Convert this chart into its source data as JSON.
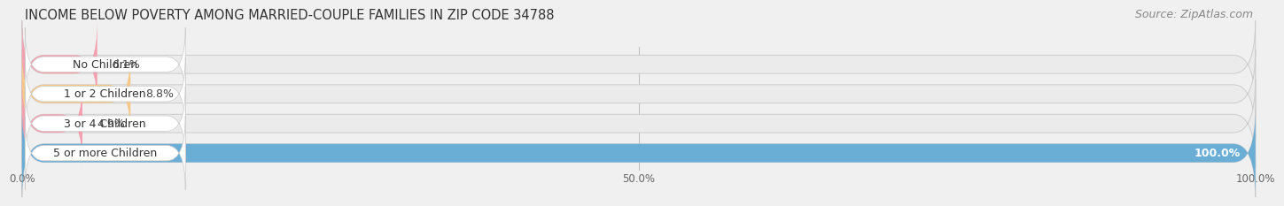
{
  "title": "INCOME BELOW POVERTY AMONG MARRIED-COUPLE FAMILIES IN ZIP CODE 34788",
  "source": "Source: ZipAtlas.com",
  "categories": [
    "No Children",
    "1 or 2 Children",
    "3 or 4 Children",
    "5 or more Children"
  ],
  "values": [
    6.1,
    8.8,
    4.9,
    100.0
  ],
  "bar_colors": [
    "#f4a0b0",
    "#f5c98a",
    "#f4a0b0",
    "#6aaed6"
  ],
  "bg_color": "#f0f0f0",
  "bar_bg_color": "#e8e8e8",
  "xlim": [
    0,
    100
  ],
  "xticks": [
    0.0,
    50.0,
    100.0
  ],
  "xtick_labels": [
    "0.0%",
    "50.0%",
    "100.0%"
  ],
  "title_fontsize": 10.5,
  "source_fontsize": 9,
  "label_fontsize": 9,
  "value_fontsize": 9,
  "figsize": [
    14.06,
    2.32
  ],
  "dpi": 100
}
